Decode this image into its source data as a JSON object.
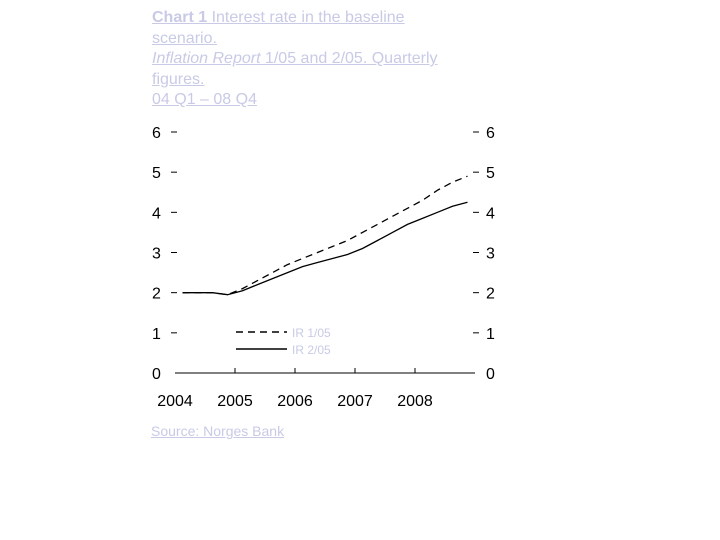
{
  "header": {
    "title_bold": "Chart 1",
    "title_rest": " Interest rate in the baseline",
    "title_line2": "scenario.",
    "subtitle_italic": "Inflation Report",
    "subtitle_rest": " 1/05 and 2/05. Quarterly",
    "subtitle_line2": "figures.",
    "period": "04 Q1 – 08 Q4"
  },
  "source": "Source: Norges Bank",
  "colors": {
    "text_muted": "#c8cae6",
    "axis": "#000000",
    "series": "#000000"
  },
  "chart_data": {
    "type": "line",
    "title": "Interest rate in the baseline scenario",
    "xlabel": "",
    "ylabel": "",
    "x_tick_labels": [
      "2004",
      "2005",
      "2006",
      "2007",
      "2008"
    ],
    "xlim": [
      2004.0,
      2009.0
    ],
    "ylim": [
      0,
      6
    ],
    "y_ticks": [
      0,
      1,
      2,
      3,
      4,
      5,
      6
    ],
    "y_tick_labels": [
      "0",
      "1",
      "2",
      "3",
      "4",
      "5",
      "6"
    ],
    "grid": false,
    "legend_position": "middle-left",
    "series": [
      {
        "name": "IR 1/05",
        "style": "dashed",
        "x": [
          2004.125,
          2004.375,
          2004.625,
          2004.875,
          2005.125,
          2005.375,
          2005.625,
          2005.875,
          2006.125,
          2006.375,
          2006.625,
          2006.875,
          2007.125,
          2007.375,
          2007.625,
          2007.875,
          2008.125,
          2008.375,
          2008.625,
          2008.875
        ],
        "y": [
          2.0,
          2.0,
          2.0,
          1.95,
          2.1,
          2.3,
          2.5,
          2.7,
          2.85,
          3.0,
          3.15,
          3.3,
          3.5,
          3.7,
          3.9,
          4.1,
          4.3,
          4.55,
          4.75,
          4.9
        ]
      },
      {
        "name": "IR 2/05",
        "style": "solid",
        "x": [
          2004.125,
          2004.375,
          2004.625,
          2004.875,
          2005.125,
          2005.375,
          2005.625,
          2005.875,
          2006.125,
          2006.375,
          2006.625,
          2006.875,
          2007.125,
          2007.375,
          2007.625,
          2007.875,
          2008.125,
          2008.375,
          2008.625,
          2008.875
        ],
        "y": [
          2.0,
          2.0,
          2.0,
          1.95,
          2.05,
          2.2,
          2.35,
          2.5,
          2.65,
          2.75,
          2.85,
          2.95,
          3.1,
          3.3,
          3.5,
          3.7,
          3.85,
          4.0,
          4.15,
          4.25
        ]
      }
    ]
  }
}
